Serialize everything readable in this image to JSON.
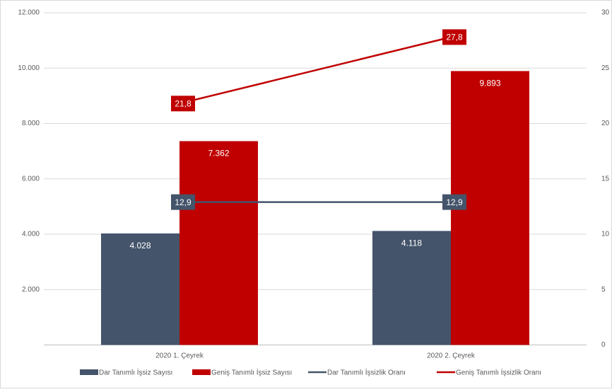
{
  "chart_data": {
    "type": "bar",
    "categories": [
      "2020 1. Çeyrek",
      "2020 2. Çeyrek"
    ],
    "series": [
      {
        "name": "Dar Tanımlı İşsiz Sayısı",
        "color": "#44546a",
        "type": "bar",
        "values": [
          4028,
          4118
        ],
        "value_labels": [
          "4.028",
          "4.118"
        ]
      },
      {
        "name": "Geniş Tanımlı İşsiz Sayısı",
        "color": "#c00000",
        "type": "bar",
        "values": [
          7362,
          9893
        ],
        "value_labels": [
          "7.362",
          "9.893"
        ]
      },
      {
        "name": "Dar Tanımlı İşsizlik Oranı",
        "color": "#44546a",
        "type": "line",
        "axis": "y2",
        "values": [
          12.9,
          12.9
        ],
        "value_labels": [
          "12,9",
          "12,9"
        ]
      },
      {
        "name": "Geniş Tanımlı İşsizlik Oranı",
        "color": "#c00000",
        "type": "line",
        "axis": "y2",
        "values": [
          21.8,
          27.8
        ],
        "value_labels": [
          "21,8",
          "27,8"
        ]
      }
    ],
    "ylim": [
      0,
      12000
    ],
    "yticks": [
      {
        "value": 2000,
        "label": "2.000"
      },
      {
        "value": 4000,
        "label": "4.000"
      },
      {
        "value": 6000,
        "label": "6.000"
      },
      {
        "value": 8000,
        "label": "8.000"
      },
      {
        "value": 10000,
        "label": "10.000"
      },
      {
        "value": 12000,
        "label": "12.000"
      }
    ],
    "y2lim": [
      0,
      30
    ],
    "y2ticks": [
      0,
      5,
      10,
      15,
      20,
      25,
      30
    ],
    "grid": true,
    "legend": "bottom"
  }
}
